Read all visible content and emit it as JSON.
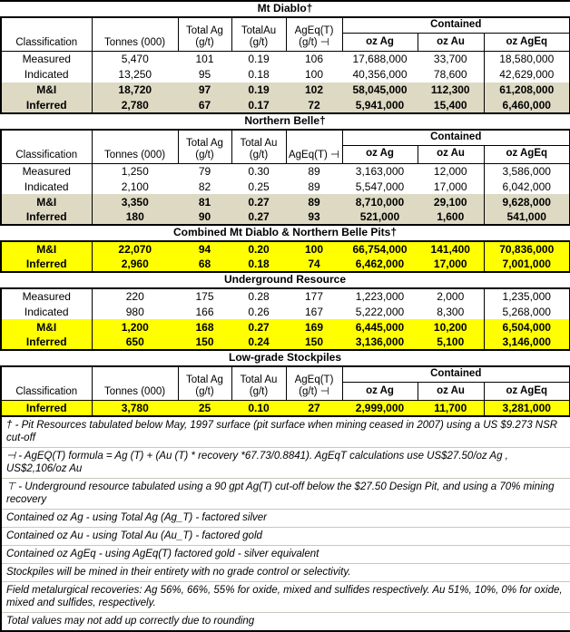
{
  "colors": {
    "highlight_tan": "#ddd9c3",
    "highlight_yellow": "#ffff00",
    "border": "#000000",
    "background": "#ffffff"
  },
  "sections": [
    {
      "title": "Mt Diablo†",
      "header": {
        "classification": "Classification",
        "tonnes": "Tonnes (000)",
        "total_ag": "Total Ag\n(g/t)",
        "total_au": "TotalAu\n(g/t)",
        "ageq": "AgEq(T)\n(g/t) ⊣",
        "contained": "Contained",
        "oz_ag": "oz Ag",
        "oz_au": "oz Au",
        "oz_ageq": "oz AgEq"
      },
      "rows": [
        {
          "style": "plain",
          "cells": [
            "Measured",
            "5,470",
            "101",
            "0.19",
            "106",
            "17,688,000",
            "33,700",
            "18,580,000"
          ]
        },
        {
          "style": "plain",
          "cells": [
            "Indicated",
            "13,250",
            "95",
            "0.18",
            "100",
            "40,356,000",
            "78,600",
            "42,629,000"
          ]
        },
        {
          "style": "tan",
          "cells": [
            "M&I",
            "18,720",
            "97",
            "0.19",
            "102",
            "58,045,000",
            "112,300",
            "61,208,000"
          ]
        },
        {
          "style": "tan",
          "cells": [
            "Inferred",
            "2,780",
            "67",
            "0.17",
            "72",
            "5,941,000",
            "15,400",
            "6,460,000"
          ]
        }
      ]
    },
    {
      "title": "Northern Belle†",
      "header": {
        "classification": "Classification",
        "tonnes": "Tonnes (000)",
        "total_ag": "Total Ag\n(g/t)",
        "total_au": "Total Au\n(g/t)",
        "ageq": "AgEq(T) ⊣",
        "contained": "Contained",
        "oz_ag": "oz Ag",
        "oz_au": "oz Au",
        "oz_ageq": "oz AgEq"
      },
      "rows": [
        {
          "style": "plain",
          "cells": [
            "Measured",
            "1,250",
            "79",
            "0.30",
            "89",
            "3,163,000",
            "12,000",
            "3,586,000"
          ]
        },
        {
          "style": "plain",
          "cells": [
            "Indicated",
            "2,100",
            "82",
            "0.25",
            "89",
            "5,547,000",
            "17,000",
            "6,042,000"
          ]
        },
        {
          "style": "tan",
          "cells": [
            "M&I",
            "3,350",
            "81",
            "0.27",
            "89",
            "8,710,000",
            "29,100",
            "9,628,000"
          ]
        },
        {
          "style": "tan",
          "cells": [
            "Inferred",
            "180",
            "90",
            "0.27",
            "93",
            "521,000",
            "1,600",
            "541,000"
          ]
        }
      ]
    },
    {
      "title": "Combined Mt Diablo & Northern Belle Pits†",
      "rows": [
        {
          "style": "yellow",
          "cells": [
            "M&I",
            "22,070",
            "94",
            "0.20",
            "100",
            "66,754,000",
            "141,400",
            "70,836,000"
          ]
        },
        {
          "style": "yellow",
          "cells": [
            "Inferred",
            "2,960",
            "68",
            "0.18",
            "74",
            "6,462,000",
            "17,000",
            "7,001,000"
          ]
        }
      ]
    },
    {
      "title": "Underground Resource",
      "rows": [
        {
          "style": "plain",
          "cells": [
            "Measured",
            "220",
            "175",
            "0.28",
            "177",
            "1,223,000",
            "2,000",
            "1,235,000"
          ]
        },
        {
          "style": "plain",
          "cells": [
            "Indicated",
            "980",
            "166",
            "0.26",
            "167",
            "5,222,000",
            "8,300",
            "5,268,000"
          ]
        },
        {
          "style": "yellow",
          "cells": [
            "M&I",
            "1,200",
            "168",
            "0.27",
            "169",
            "6,445,000",
            "10,200",
            "6,504,000"
          ]
        },
        {
          "style": "yellow",
          "cells": [
            "Inferred",
            "650",
            "150",
            "0.24",
            "150",
            "3,136,000",
            "5,100",
            "3,146,000"
          ]
        }
      ]
    },
    {
      "title": "Low-grade Stockpiles",
      "header": {
        "classification": "Classification",
        "tonnes": "Tonnes (000)",
        "total_ag": "Total Ag\n(g/t)",
        "total_au": "Total Au\n(g/t)",
        "ageq": "AgEq(T)\n(g/t) ⊣",
        "contained": "Contained",
        "oz_ag": "oz Ag",
        "oz_au": "oz Au",
        "oz_ageq": "oz AgEq"
      },
      "rows": [
        {
          "style": "yellow",
          "cells": [
            "Inferred",
            "3,780",
            "25",
            "0.10",
            "27",
            "2,999,000",
            "11,700",
            "3,281,000"
          ]
        }
      ]
    }
  ],
  "footnotes": [
    "† - Pit Resources tabulated below May, 1997 surface (pit surface when mining ceased in 2007) using a US $9.273 NSR cut-off",
    "⊣ - AgEQ(T) formula = Ag (T) + (Au (T) * recovery *67.73/0.8841).  AgEqT calculations use US$27.50/oz Ag , US$2,106/oz Au",
    "⊤ - Underground resource tabulated using a 90 gpt Ag(T) cut-off below the $27.50 Design Pit, and using a 70% mining recovery",
    "Contained oz Ag - using Total Ag (Ag_T) - factored silver",
    "Contained oz Au - using Total Au (Au_T) - factored gold",
    "Contained oz AgEq - using AgEq(T) factored gold - silver equivalent",
    "Stockpiles will be mined in their entirety with no grade control or selectivity.",
    "Field metalurgical recoveries: Ag  56%, 66%, 55% for oxide, mixed and sulfides respectively.  Au  51%, 10%, 0% for oxide, mixed and sulfides, respectively.",
    "Total values may not add up correctly due to rounding"
  ]
}
